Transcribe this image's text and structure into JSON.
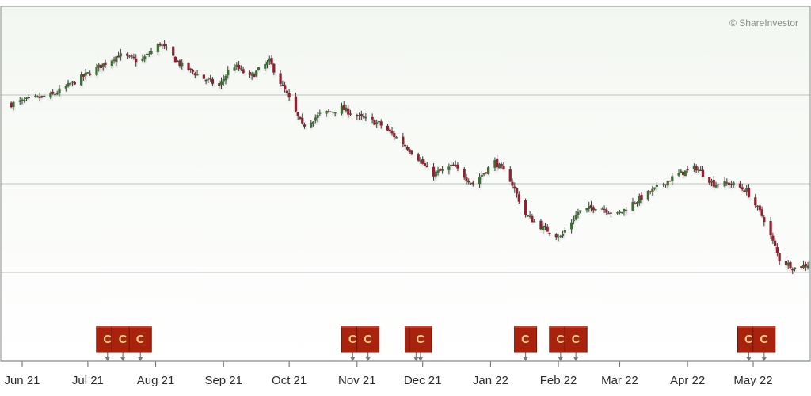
{
  "watermark": "© ShareInvestor",
  "colors": {
    "background_top": "#f3f7f1",
    "background_bottom": "#ffffff",
    "grid": "#bfc3bf",
    "frame": "#9aa09a",
    "up": "#3d6e35",
    "down": "#8e2233",
    "wick": "#3a3a3a",
    "marker_fill": "#a8220e",
    "marker_border": "#6e1508",
    "marker_text": "#ffd089"
  },
  "chart_data": {
    "type": "candlestick",
    "title": "",
    "xlabel": "",
    "ylabel": "",
    "x_tick_labels": [
      "Jun 21",
      "Jul 21",
      "Aug 21",
      "Sep 21",
      "Oct 21",
      "Nov 21",
      "Dec 21",
      "Jan 22",
      "Feb 22",
      "Mar 22",
      "Apr 22",
      "May 22"
    ],
    "y_range": [
      0,
      400
    ],
    "y_gridlines": [
      100,
      200,
      300
    ],
    "y_tick_labels_visible": false,
    "series": [
      {
        "close_path": [
          [
            "2021-05-27",
            290
          ],
          [
            "2021-06-05",
            295
          ],
          [
            "2021-06-15",
            300
          ],
          [
            "2021-06-25",
            315
          ],
          [
            "2021-07-05",
            330
          ],
          [
            "2021-07-15",
            345
          ],
          [
            "2021-07-25",
            338
          ],
          [
            "2021-08-03",
            358
          ],
          [
            "2021-08-12",
            335
          ],
          [
            "2021-08-22",
            320
          ],
          [
            "2021-08-30",
            310
          ],
          [
            "2021-09-05",
            335
          ],
          [
            "2021-09-13",
            320
          ],
          [
            "2021-09-22",
            338
          ],
          [
            "2021-09-30",
            300
          ],
          [
            "2021-10-07",
            265
          ],
          [
            "2021-10-15",
            278
          ],
          [
            "2021-10-25",
            285
          ],
          [
            "2021-11-02",
            275
          ],
          [
            "2021-11-11",
            268
          ],
          [
            "2021-11-20",
            250
          ],
          [
            "2021-11-28",
            232
          ],
          [
            "2021-12-05",
            210
          ],
          [
            "2021-12-15",
            220
          ],
          [
            "2021-12-24",
            200
          ],
          [
            "2022-01-03",
            225
          ],
          [
            "2022-01-10",
            205
          ],
          [
            "2022-01-17",
            165
          ],
          [
            "2022-01-25",
            150
          ],
          [
            "2022-02-02",
            140
          ],
          [
            "2022-02-10",
            168
          ],
          [
            "2022-02-19",
            175
          ],
          [
            "2022-02-28",
            165
          ],
          [
            "2022-03-08",
            180
          ],
          [
            "2022-03-18",
            195
          ],
          [
            "2022-03-27",
            210
          ],
          [
            "2022-04-05",
            218
          ],
          [
            "2022-04-13",
            200
          ],
          [
            "2022-04-21",
            200
          ],
          [
            "2022-04-28",
            192
          ],
          [
            "2022-05-06",
            160
          ],
          [
            "2022-05-13",
            115
          ],
          [
            "2022-05-20",
            105
          ],
          [
            "2022-05-27",
            110
          ]
        ]
      }
    ],
    "event_markers": [
      {
        "date": "2021-07-10",
        "label": "C"
      },
      {
        "date": "2021-07-17",
        "label": "C"
      },
      {
        "date": "2021-07-25",
        "label": "C"
      },
      {
        "date": "2021-10-30",
        "label": "C"
      },
      {
        "date": "2021-11-06",
        "label": "C"
      },
      {
        "date": "2021-11-28",
        "label": "C"
      },
      {
        "date": "2021-11-30",
        "label": "C"
      },
      {
        "date": "2022-01-17",
        "label": "C"
      },
      {
        "date": "2022-02-02",
        "label": "C"
      },
      {
        "date": "2022-02-09",
        "label": "C"
      },
      {
        "date": "2022-04-29",
        "label": "C"
      },
      {
        "date": "2022-05-06",
        "label": "C"
      }
    ]
  }
}
